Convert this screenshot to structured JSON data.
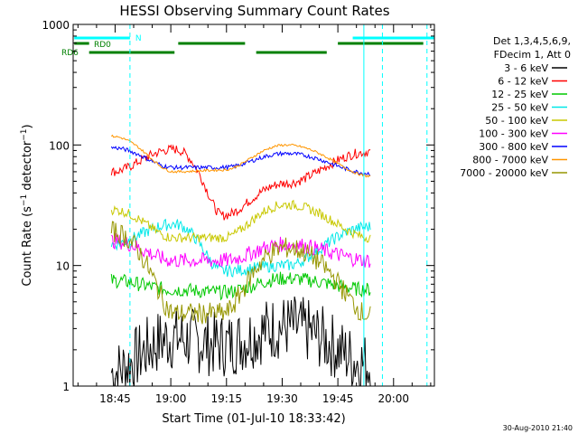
{
  "chart_data": {
    "type": "line",
    "title": "HESSI Observing Summary Count Rates",
    "xlabel": "Start Time (01-Jul-10 18:33:42)",
    "ylabel_parts": [
      "Count Rate (s",
      "−1",
      " detector",
      "−1",
      ")"
    ],
    "y_scale": "log",
    "ylim": [
      1,
      1000
    ],
    "y_ticks": [
      1,
      10,
      100,
      1000
    ],
    "y_tick_labels": [
      "1",
      "10",
      "100",
      "1000"
    ],
    "x_range_minutes": [
      "18:33:42",
      "20:11:00"
    ],
    "x_ticks": [
      "18:45",
      "19:00",
      "19:15",
      "19:30",
      "19:45",
      "20:00"
    ],
    "grid": false,
    "legend_position": "right",
    "legend_header": [
      "Det 1,3,4,5,6,9,",
      "FDecim 1, Att 0"
    ],
    "footer": "30-Aug-2010 21:40",
    "series": [
      {
        "name": "3 - 6 keV",
        "color": "#000000",
        "levels": [
          1.3,
          2.5,
          2.2,
          3.1,
          1.5
        ]
      },
      {
        "name": "6 - 12 keV",
        "color": "#ff0000",
        "levels": [
          60,
          92,
          26,
          48,
          88
        ]
      },
      {
        "name": "12 - 25 keV",
        "color": "#00c800",
        "levels": [
          7.5,
          6.3,
          6.0,
          7.8,
          6.3
        ]
      },
      {
        "name": "25 - 50 keV",
        "color": "#00e8e8",
        "levels": [
          15,
          22,
          9,
          10,
          21
        ]
      },
      {
        "name": "50 - 100 keV",
        "color": "#c8c800",
        "levels": [
          29,
          17,
          17,
          32,
          17
        ]
      },
      {
        "name": "100 - 300 keV",
        "color": "#ff00ff",
        "levels": [
          16,
          11,
          11,
          15,
          11
        ]
      },
      {
        "name": "300 - 800 keV",
        "color": "#0000ff",
        "levels": [
          95,
          65,
          65,
          85,
          58
        ]
      },
      {
        "name": "800 - 7000 keV",
        "color": "#ff9600",
        "levels": [
          118,
          60,
          62,
          100,
          55
        ]
      },
      {
        "name": "7000 - 20000 keV",
        "color": "#969600",
        "levels": [
          19,
          4.0,
          4.0,
          14,
          3.8
        ]
      }
    ],
    "flag_bars": [
      {
        "label": "N",
        "color": "#00ffff",
        "segments": [
          [
            "18:34",
            "18:49"
          ],
          [
            "19:49",
            "20:11"
          ]
        ]
      },
      {
        "label": "RD0",
        "color": "#008000",
        "segments": [
          [
            "18:34",
            "18:38"
          ],
          [
            "19:02",
            "19:20"
          ],
          [
            "19:45",
            "20:08"
          ]
        ]
      },
      {
        "label": "RD6",
        "color": "#008000",
        "segments": [
          [
            "18:38",
            "19:01"
          ],
          [
            "19:23",
            "19:42"
          ]
        ]
      }
    ],
    "vertical_lines": [
      {
        "time": "18:33:42",
        "color": "#00ffff",
        "style": "solid"
      },
      {
        "time": "18:49",
        "color": "#00ffff",
        "style": "dashed"
      },
      {
        "time": "19:52",
        "color": "#00ffff",
        "style": "solid"
      },
      {
        "time": "19:57",
        "color": "#00ffff",
        "style": "dashed"
      },
      {
        "time": "20:09",
        "color": "#00ffff",
        "style": "dashed"
      }
    ]
  }
}
